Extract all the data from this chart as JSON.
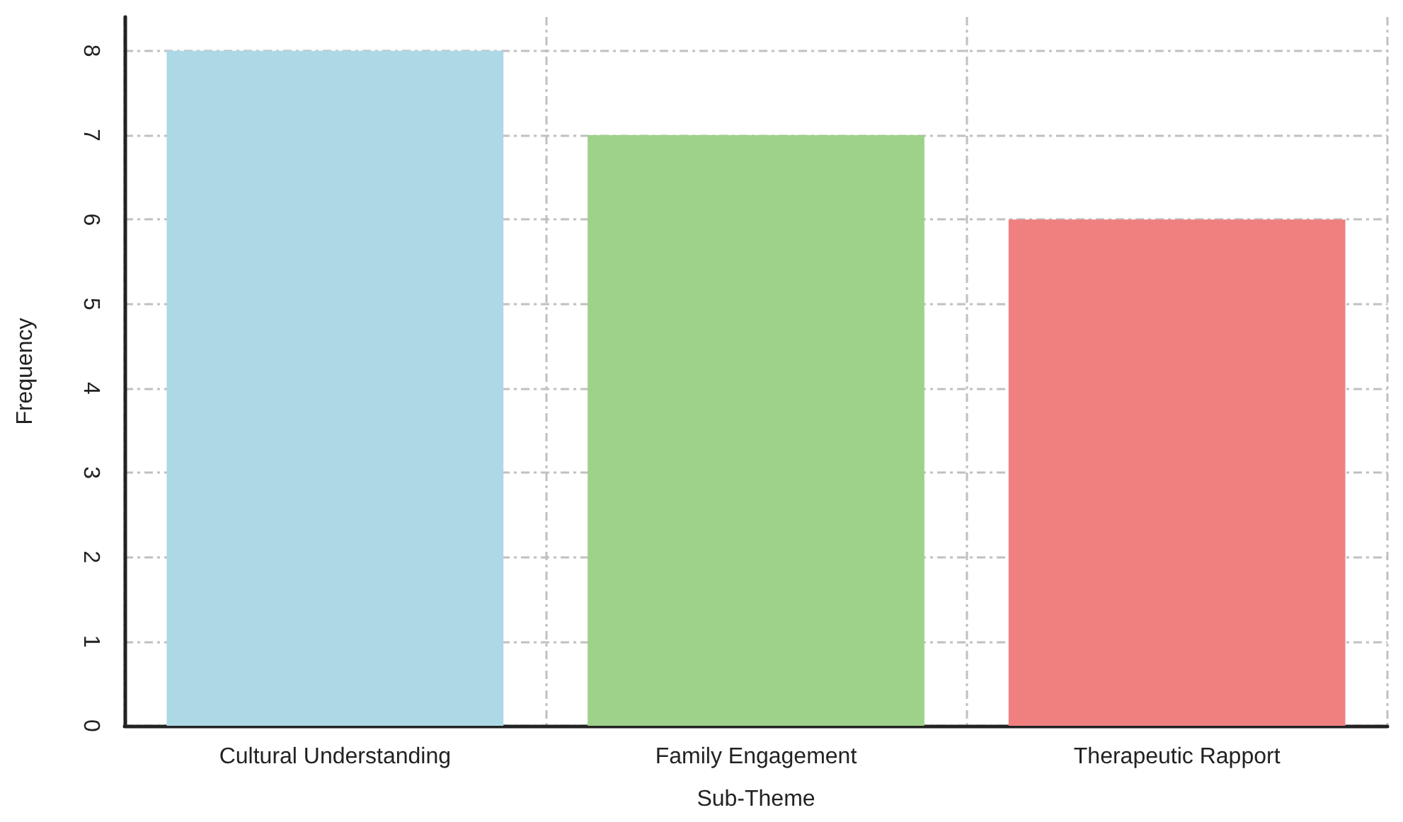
{
  "chart_data": {
    "type": "bar",
    "xlabel": "Sub-Theme",
    "ylabel": "Frequency",
    "categories": [
      "Cultural Understanding",
      "Family Engagement",
      "Therapeutic Rapport"
    ],
    "values": [
      8,
      7,
      6
    ],
    "colors": [
      "#add8e6",
      "#9ed18a",
      "#f08080"
    ],
    "ylim": [
      0,
      8.4
    ],
    "yticks": [
      0,
      1,
      2,
      3,
      4,
      5,
      6,
      7,
      8
    ],
    "grid": true
  }
}
